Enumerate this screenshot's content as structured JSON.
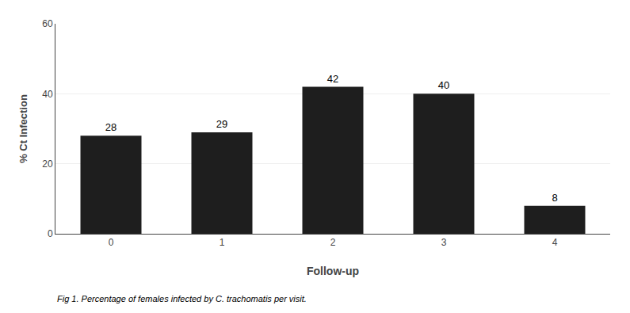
{
  "chart_data": {
    "type": "bar",
    "categories": [
      "0",
      "1",
      "2",
      "3",
      "4"
    ],
    "values": [
      28,
      29,
      42,
      40,
      8
    ],
    "color": "#1e1e1e",
    "xlabel": "Follow-up",
    "ylabel": "% Ct Infection",
    "ylim": [
      0,
      60
    ],
    "yticks": [
      0,
      20,
      40,
      60
    ],
    "grid": true,
    "data_labels": true,
    "annotations": [
      "Fig 1. Percentage of females infected by C. trachomatis per visit."
    ]
  }
}
